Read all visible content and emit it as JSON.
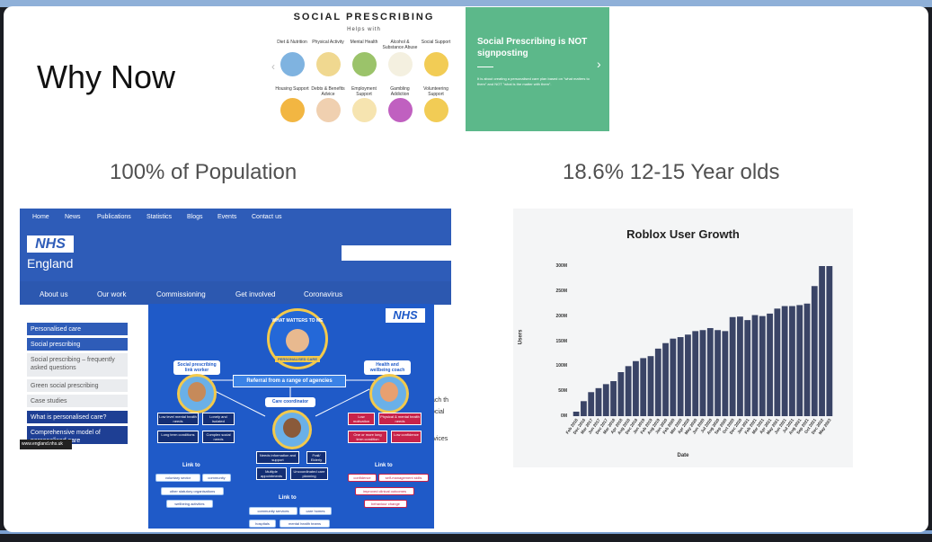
{
  "slide": {
    "title": "Why Now",
    "caption_left": "100% of Population",
    "caption_right": "18.6% 12-15 Year olds"
  },
  "social_prescribing": {
    "title": "SOCIAL PRESCRIBING",
    "subtitle": "Helps with",
    "row1": [
      {
        "label": "Diet & Nutrition",
        "color": "#7fb3e0"
      },
      {
        "label": "Physical Activity",
        "color": "#f0d890"
      },
      {
        "label": "Mental Health",
        "color": "#9bc36a"
      },
      {
        "label": "Alcohol & Substance Abuse",
        "color": "#f4f0e0"
      },
      {
        "label": "Social Support",
        "color": "#f2cc55"
      }
    ],
    "row2": [
      {
        "label": "Housing Support",
        "color": "#f2b642"
      },
      {
        "label": "Debts & Benefits Advice",
        "color": "#f0d0b0"
      },
      {
        "label": "Employment Support",
        "color": "#f6e4b0"
      },
      {
        "label": "Gambling Addiction",
        "color": "#c060c0"
      },
      {
        "label": "Volunteering Support",
        "color": "#f2cc55"
      }
    ]
  },
  "green_card": {
    "title": "Social Prescribing is NOT signposting",
    "body": "It is about creating a personalised care plan based on \"what matters to them\" and NOT \"what is the matter with them\"."
  },
  "nhs_page": {
    "top_nav": [
      "Home",
      "News",
      "Publications",
      "Statistics",
      "Blogs",
      "Events",
      "Contact us"
    ],
    "logo": "NHS",
    "org": "England",
    "main_nav": [
      "About us",
      "Our work",
      "Commissioning",
      "Get involved",
      "Coronavirus"
    ],
    "sidebar": [
      "Personalised care",
      "Social prescribing",
      "Social prescribing – frequently asked questions",
      "Green social prescribing",
      "Case studies",
      "What is personalised care?",
      "Comprehensive model of personalised care"
    ],
    "fragments": [
      "ach th",
      "ocial",
      "rvices"
    ],
    "badge": "www.england.nhs.uk"
  },
  "infographic": {
    "logo": "NHS",
    "center_label": "WHAT MATTERS TO ME",
    "center_sub": "PERSONALISED CARE",
    "referral": "Referral from a range of agencies",
    "left_header": "Social prescribing link worker",
    "right_header": "Health and wellbeing coach",
    "coordinator": "Care coordinator",
    "left_boxes": [
      "Low level mental health needs",
      "Lonely and isolated",
      "Long term conditions",
      "Complex social needs"
    ],
    "middle_boxes": [
      "Needs information and support",
      "Frail/ Elderly",
      "Multiple appointments",
      "Uncoordinated care planning"
    ],
    "right_boxes": [
      "Low motivation",
      "Physical & mental health needs",
      "One or more long term condition",
      "Low confidence"
    ],
    "link_to": "Link to",
    "left_links": [
      "voluntary sector",
      "community",
      "other statutory organisations",
      "wellbeing activities"
    ],
    "middle_links": [
      "community services",
      "care homes",
      "hospitals",
      "mental health teams"
    ],
    "right_links": [
      "confidence",
      "self-management skills",
      "improved clinical outcomes",
      "behaviour change"
    ]
  },
  "chart_data": {
    "type": "bar",
    "title": "Roblox User Growth",
    "xlabel": "Date",
    "ylabel": "Users",
    "ylim": [
      0,
      300
    ],
    "yticks": [
      "300M",
      "250M",
      "200M",
      "150M",
      "100M",
      "50M",
      "0M"
    ],
    "ytick_values": [
      300,
      250,
      200,
      150,
      100,
      50,
      0
    ],
    "bar_color": "#3a4466",
    "categories": [
      "Feb 2016",
      "Dec 2016",
      "Mar 2017",
      "Jun 2017",
      "Dec 2017",
      "Mar 2018",
      "Apr 2018",
      "Aug 2018",
      "Dec 2018",
      "Jan 2019",
      "Feb 2019",
      "Aug 2019",
      "Jan 2020",
      "Feb 2020",
      "Mar 2020",
      "Apr 2020",
      "May 2020",
      "Jun 2020",
      "Jul 2020",
      "Aug 2020",
      "Sep 2020",
      "Oct 2020",
      "Dec 2020",
      "Jan 2021",
      "Feb 2021",
      "Mar 2021",
      "Apr 2021",
      "May 2021",
      "Jun 2021",
      "Jul 2021",
      "Aug 2021",
      "Sep 2021",
      "Oct 2021",
      "Dec 2022",
      "May 2023"
    ],
    "values": [
      9,
      30,
      48,
      56,
      64,
      70,
      88,
      100,
      110,
      116,
      120,
      135,
      146,
      155,
      158,
      163,
      170,
      172,
      176,
      172,
      170,
      198,
      199,
      192,
      202,
      200,
      205,
      215,
      220,
      220,
      222,
      225,
      260,
      300,
      300
    ]
  }
}
